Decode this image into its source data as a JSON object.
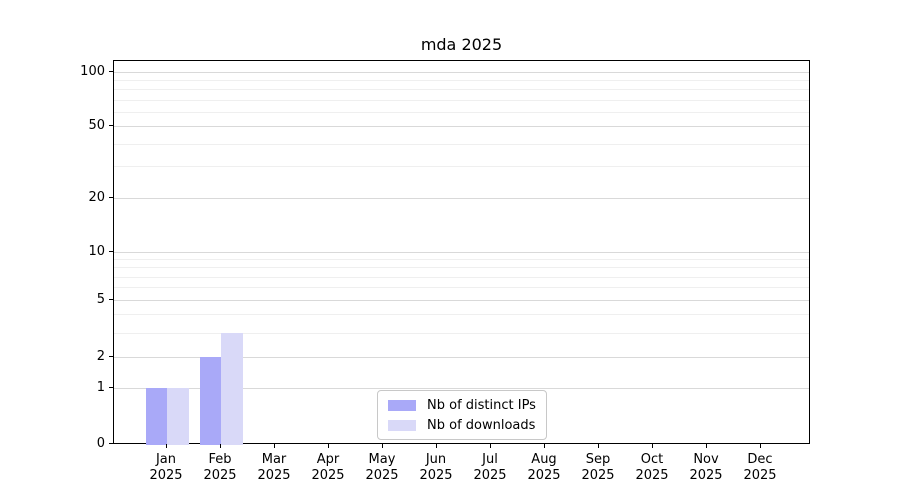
{
  "chart_data": {
    "type": "bar",
    "title": "mda 2025",
    "months": [
      "Jan",
      "Feb",
      "Mar",
      "Apr",
      "May",
      "Jun",
      "Jul",
      "Aug",
      "Sep",
      "Oct",
      "Nov",
      "Dec"
    ],
    "year": "2025",
    "series": [
      {
        "name": "Nb of distinct IPs",
        "color": "#a9a9f8",
        "values": [
          1,
          2,
          0,
          0,
          0,
          0,
          0,
          0,
          0,
          0,
          0,
          0
        ]
      },
      {
        "name": "Nb of downloads",
        "color": "#d9d9f8",
        "values": [
          1,
          3,
          0,
          0,
          0,
          0,
          0,
          0,
          0,
          0,
          0,
          0
        ]
      }
    ],
    "y_axis": {
      "scale": "symlog",
      "major_ticks": [
        0,
        1,
        2,
        5,
        10,
        20,
        50,
        100
      ],
      "minor_gridlines": [
        3,
        4,
        6,
        7,
        8,
        9,
        30,
        40,
        60,
        70,
        80,
        90
      ],
      "ylim_top_value": 130
    },
    "grid": true,
    "legend_position": "lower-center",
    "colors": {
      "major_grid": "#d9d9d9",
      "minor_grid": "#efefef",
      "axis": "#000000"
    },
    "y_scale_anchors": [
      [
        0,
        443
      ],
      [
        1,
        387
      ],
      [
        2,
        356
      ],
      [
        3,
        332
      ],
      [
        5,
        299
      ],
      [
        10,
        251
      ],
      [
        20,
        197
      ],
      [
        50,
        125
      ],
      [
        100,
        71
      ]
    ]
  }
}
